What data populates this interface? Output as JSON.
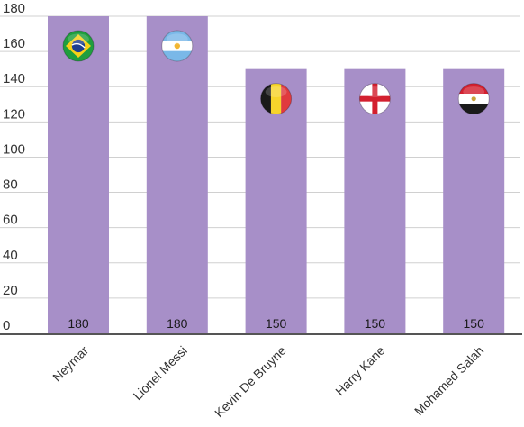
{
  "chart_data": {
    "type": "bar",
    "title": "",
    "xlabel": "",
    "ylabel": "",
    "categories": [
      "Neymar",
      "Lionel Messi",
      "Kevin De Bruyne",
      "Harry Kane",
      "Mohamed Salah"
    ],
    "values": [
      180,
      180,
      150,
      150,
      150
    ],
    "data_labels": [
      "180",
      "180",
      "150",
      "150",
      "150"
    ],
    "ylim": [
      0,
      180
    ],
    "yticks": [
      0,
      20,
      40,
      60,
      80,
      100,
      120,
      140,
      160,
      180
    ],
    "grid": true,
    "bar_color": "#a78fc8",
    "flag_icons": [
      "brazil-flag-icon",
      "argentina-flag-icon",
      "belgium-flag-icon",
      "england-flag-icon",
      "egypt-flag-icon"
    ]
  }
}
